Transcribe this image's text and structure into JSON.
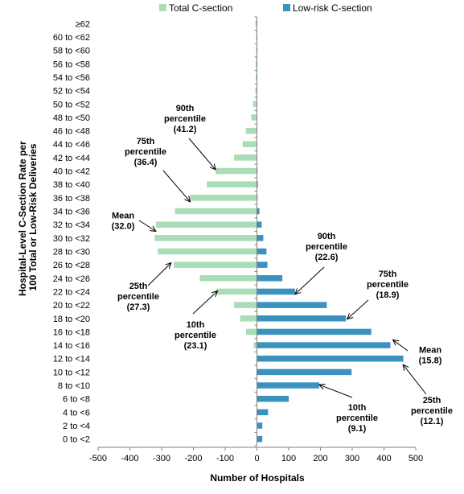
{
  "chart_data": {
    "type": "bar",
    "orientation": "horizontal",
    "diverging": true,
    "categories": [
      "0 to <2",
      "2 to <4",
      "4 to <6",
      "6 to <8",
      "8 to <10",
      "10 to <12",
      "12 to <14",
      "14 to <16",
      "16 to <18",
      "18 to <20",
      "20 to <22",
      "22 to <24",
      "24 to <26",
      "26 to <28",
      "28 to <30",
      "30 to <32",
      "32 to <34",
      "34 to <36",
      "36 to <38",
      "38 to <40",
      "40 to <42",
      "42 to <44",
      "44 to <46",
      "46 to <48",
      "48 to <50",
      "50 to <52",
      "52 to <54",
      "54 to <56",
      "56 to <58",
      "58 to <60",
      "60 to <62",
      "≥62"
    ],
    "series": [
      {
        "name": "Total C-section",
        "color": "#a9dcb7",
        "direction": "left",
        "values": [
          1,
          1,
          1,
          1,
          1,
          2,
          2,
          10,
          34,
          53,
          72,
          128,
          180,
          262,
          312,
          322,
          318,
          258,
          210,
          158,
          130,
          72,
          45,
          35,
          18,
          12,
          5,
          4,
          4,
          3,
          3,
          5
        ]
      },
      {
        "name": "Low-risk C-section",
        "color": "#3b92bf",
        "direction": "right",
        "values": [
          17,
          17,
          35,
          100,
          196,
          298,
          461,
          420,
          360,
          280,
          220,
          120,
          80,
          33,
          30,
          20,
          15,
          8,
          2,
          3,
          2,
          1,
          1,
          1,
          1,
          1,
          1,
          1,
          1,
          1,
          1,
          1
        ]
      }
    ],
    "xlabel": "Number of Hospitals",
    "ylabel": "Hospital-Level C-Section Rate per 100 Total or Low-Risk Deliveries",
    "xlim": [
      -500,
      500
    ],
    "xticks": [
      "-500",
      "-400",
      "-300",
      "-200",
      "-100",
      "0",
      "100",
      "200",
      "300",
      "400",
      "500"
    ],
    "legend_position": "top",
    "grid": false,
    "annotations": [
      {
        "lines": [
          "90th",
          "percentile",
          "(41.2)"
        ],
        "series": "Total C-section",
        "target_value": 41.2
      },
      {
        "lines": [
          "75th",
          "percentile",
          "(36.4)"
        ],
        "series": "Total C-section",
        "target_value": 36.4
      },
      {
        "lines": [
          "Mean",
          "(32.0)"
        ],
        "series": "Total C-section",
        "target_value": 32.0
      },
      {
        "lines": [
          "25th",
          "percentile",
          "(27.3)"
        ],
        "series": "Total C-section",
        "target_value": 27.3
      },
      {
        "lines": [
          "10th",
          "percentile",
          "(23.1)"
        ],
        "series": "Total C-section",
        "target_value": 23.1
      },
      {
        "lines": [
          "90th",
          "percentile",
          "(22.6)"
        ],
        "series": "Low-risk C-section",
        "target_value": 22.6
      },
      {
        "lines": [
          "75th",
          "percentile",
          "(18.9)"
        ],
        "series": "Low-risk C-section",
        "target_value": 18.9
      },
      {
        "lines": [
          "Mean",
          "(15.8)"
        ],
        "series": "Low-risk C-section",
        "target_value": 15.8
      },
      {
        "lines": [
          "25th",
          "percentile",
          "(12.1)"
        ],
        "series": "Low-risk C-section",
        "target_value": 12.1
      },
      {
        "lines": [
          "10th",
          "percentile",
          "(9.1)"
        ],
        "series": "Low-risk C-section",
        "target_value": 9.1
      }
    ]
  }
}
